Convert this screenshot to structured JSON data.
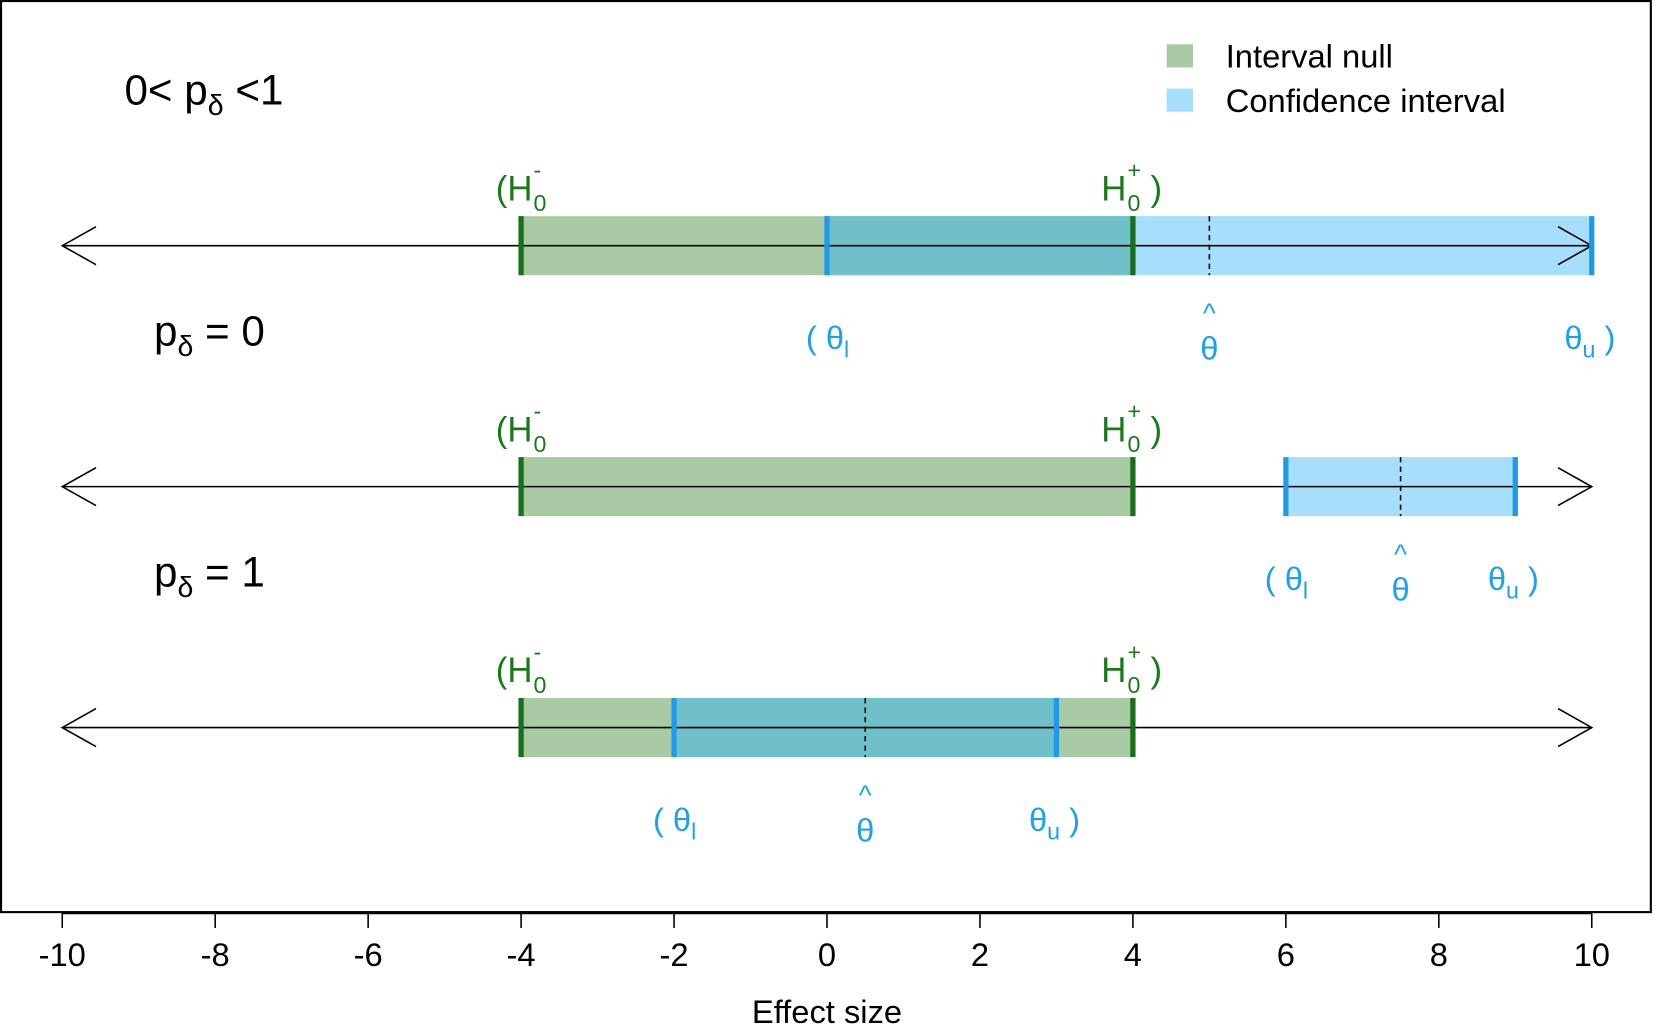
{
  "chart_data": {
    "type": "interval",
    "xlabel": "Effect size",
    "xlim": [
      -10,
      10
    ],
    "xticks": [
      -10,
      -8,
      -6,
      -4,
      -2,
      0,
      2,
      4,
      6,
      8,
      10
    ],
    "grid": false,
    "legend_placement": "top-right",
    "legend": [
      {
        "label": "Interval null",
        "color": "#a8cba3"
      },
      {
        "label": "Confidence interval",
        "color": "#a6defc"
      }
    ],
    "colors": {
      "null_fill": "#a8cba3",
      "ci_fill": "#a6defc",
      "overlap_fill": "#6fc0c8",
      "null_edge": "#1b6e1b",
      "ci_edge": "#1e9be8",
      "null_text": "#1a7a1a",
      "ci_text": "#1ea0f0"
    },
    "null_labels": {
      "lower": "(H",
      "lower_sub": "0",
      "lower_sup": "-",
      "upper": "H",
      "upper_sub": "0",
      "upper_sup": "+",
      "upper_close": ")"
    },
    "ci_labels": {
      "lower": "( θ",
      "lower_sub": "l",
      "estimate": "θ",
      "estimate_hat": "^",
      "upper": "θ",
      "upper_sub": "u",
      "upper_close": ")"
    },
    "rows": [
      {
        "title_pre": "0< p",
        "title_sub": "δ",
        "title_post": " <1",
        "null": [
          -4,
          4
        ],
        "ci": [
          0,
          10
        ],
        "estimate": 5
      },
      {
        "title_pre": "p",
        "title_sub": "δ",
        "title_post": " = 0",
        "null": [
          -4,
          4
        ],
        "ci": [
          6,
          9
        ],
        "estimate": 7.5
      },
      {
        "title_pre": "p",
        "title_sub": "δ",
        "title_post": " = 1",
        "null": [
          -4,
          4
        ],
        "ci": [
          -2,
          3
        ],
        "estimate": 0.5
      }
    ]
  }
}
